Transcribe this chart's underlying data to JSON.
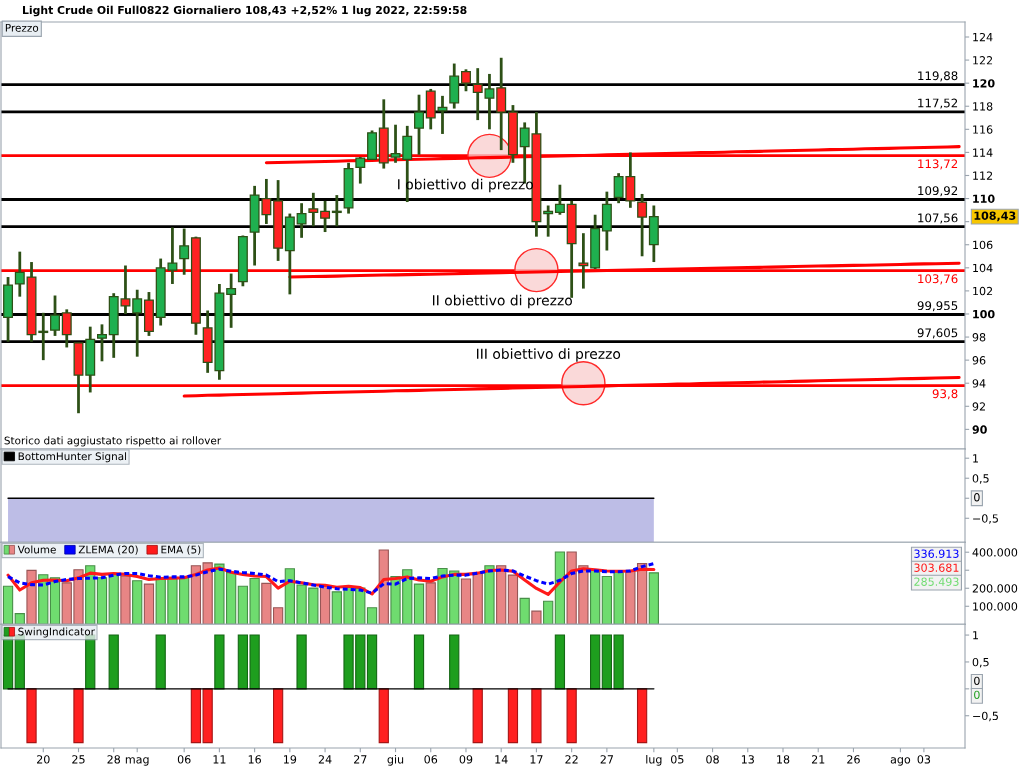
{
  "chart_data": [
    {
      "type": "candlestick",
      "title": "Light Crude Oil Full0822 Giornaliero 108,43 +2,52% 1 lug 2022, 22:59:58",
      "subtitle": "Prezzo",
      "categories": [
        null,
        null,
        null,
        null,
        null,
        null,
        null,
        null,
        null,
        null,
        null,
        null,
        null,
        null,
        null,
        null,
        null,
        null,
        null,
        null,
        null,
        null,
        null,
        null,
        null,
        null,
        null,
        null,
        null,
        null,
        null,
        null,
        null,
        null,
        null,
        null,
        null,
        null,
        null,
        null,
        null,
        null,
        null,
        null,
        null,
        null,
        null,
        null,
        null,
        null,
        null,
        null,
        null,
        null,
        null,
        null,
        null,
        null,
        null,
        null,
        null,
        null,
        null,
        null,
        null,
        null,
        null,
        null,
        null,
        null,
        null,
        null,
        null,
        null,
        null,
        null,
        null,
        null,
        null,
        null,
        null,
        null
      ],
      "ohlc": [
        [
          99.7,
          103.2,
          97.6,
          102.5
        ],
        [
          102.6,
          105.4,
          101.5,
          103.6
        ],
        [
          103.2,
          104.5,
          97.6,
          98.2
        ],
        [
          98.5,
          100.1,
          96.0,
          98.4
        ],
        [
          98.6,
          101.6,
          98.1,
          99.9
        ],
        [
          100.1,
          100.4,
          97.1,
          98.2
        ],
        [
          97.5,
          97.5,
          91.4,
          94.7
        ],
        [
          94.7,
          98.9,
          93.2,
          97.8
        ],
        [
          97.9,
          99.1,
          95.9,
          98.2
        ],
        [
          98.2,
          101.8,
          96.2,
          101.5
        ],
        [
          101.3,
          104.2,
          100.0,
          100.7
        ],
        [
          100.1,
          102.1,
          96.3,
          101.3
        ],
        [
          101.2,
          101.9,
          98.1,
          98.5
        ],
        [
          99.7,
          104.8,
          99.0,
          104.0
        ],
        [
          103.8,
          107.5,
          102.6,
          104.4
        ],
        [
          104.8,
          107.4,
          103.4,
          105.9
        ],
        [
          106.6,
          106.7,
          98.2,
          99.2
        ],
        [
          98.8,
          100.3,
          94.9,
          95.8
        ],
        [
          95.1,
          102.6,
          94.3,
          101.8
        ],
        [
          101.7,
          103.5,
          98.8,
          102.2
        ],
        [
          102.8,
          106.8,
          102.4,
          106.7
        ],
        [
          107.1,
          111.1,
          104.2,
          110.3
        ],
        [
          110.0,
          111.7,
          107.8,
          108.6
        ],
        [
          109.8,
          111.6,
          104.6,
          105.7
        ],
        [
          105.5,
          108.7,
          101.7,
          108.4
        ],
        [
          107.8,
          109.6,
          106.6,
          108.7
        ],
        [
          109.1,
          110.5,
          107.6,
          108.8
        ],
        [
          108.9,
          109.8,
          107.1,
          108.3
        ],
        [
          108.8,
          110.3,
          107.6,
          108.9
        ],
        [
          109.2,
          113.1,
          108.7,
          112.6
        ],
        [
          112.7,
          113.6,
          111.3,
          113.5
        ],
        [
          113.4,
          115.9,
          113.4,
          115.7
        ],
        [
          116.1,
          118.6,
          112.6,
          113.1
        ],
        [
          113.6,
          116.4,
          113.1,
          113.9
        ],
        [
          113.4,
          116.3,
          109.7,
          115.4
        ],
        [
          116.1,
          119.0,
          113.8,
          117.5
        ],
        [
          119.3,
          119.5,
          116.0,
          117.0
        ],
        [
          117.6,
          118.9,
          115.6,
          117.9
        ],
        [
          118.3,
          121.7,
          117.8,
          120.6
        ],
        [
          121.0,
          121.2,
          119.3,
          120.0
        ],
        [
          119.9,
          121.3,
          116.8,
          119.2
        ],
        [
          118.7,
          120.8,
          116.0,
          119.5
        ],
        [
          119.6,
          122.2,
          114.2,
          117.5
        ],
        [
          117.5,
          118.1,
          113.1,
          113.8
        ],
        [
          114.5,
          116.6,
          111.3,
          116.1
        ],
        [
          115.6,
          117.5,
          106.7,
          108.0
        ],
        [
          108.7,
          109.4,
          106.7,
          108.9
        ],
        [
          108.8,
          111.2,
          108.6,
          109.5
        ],
        [
          109.5,
          109.8,
          101.4,
          106.1
        ],
        [
          104.4,
          107.0,
          102.2,
          104.2
        ],
        [
          104.0,
          108.6,
          103.9,
          107.4
        ],
        [
          107.2,
          110.6,
          105.5,
          109.5
        ],
        [
          110.1,
          112.2,
          109.6,
          111.9
        ],
        [
          111.9,
          114.0,
          109.2,
          109.8
        ],
        [
          109.7,
          110.4,
          105.0,
          108.4
        ],
        [
          106.0,
          109.4,
          104.5,
          108.43
        ],
        null,
        null,
        null,
        null,
        null,
        null,
        null,
        null,
        null,
        null,
        null,
        null,
        null,
        null,
        null,
        null,
        null,
        null,
        null,
        null,
        null,
        null,
        null,
        null,
        null,
        null
      ],
      "series": [
        {
          "type": "line",
          "color": "#ff0000",
          "values": [
            null,
            null,
            null,
            null,
            null,
            null,
            null,
            null,
            null,
            null,
            null,
            null,
            null,
            null,
            null,
            null,
            null,
            null,
            null,
            null,
            null,
            null,
            113.1,
            113.12,
            113.15,
            113.17,
            113.19,
            113.22,
            113.24,
            113.27,
            113.29,
            113.31,
            113.34,
            113.36,
            113.38,
            113.41,
            113.43,
            113.46,
            113.48,
            113.5,
            113.53,
            113.55,
            113.57,
            113.6,
            113.62,
            113.64,
            113.67,
            113.69,
            113.72,
            113.74,
            113.76,
            113.79,
            113.81,
            113.83,
            113.86,
            113.88,
            113.91,
            113.93,
            113.95,
            113.98,
            114.0,
            114.02,
            114.05,
            114.07,
            114.09,
            114.12,
            114.14,
            114.17,
            114.19,
            114.21,
            114.24,
            114.26,
            114.28,
            114.31,
            114.33,
            114.35,
            114.38,
            114.4,
            114.43,
            114.45,
            114.47,
            114.5
          ]
        },
        {
          "type": "line",
          "color": "#ff0000",
          "values": [
            null,
            null,
            null,
            null,
            null,
            null,
            null,
            null,
            null,
            null,
            null,
            null,
            null,
            null,
            null,
            null,
            null,
            null,
            null,
            null,
            null,
            null,
            null,
            null,
            103.2,
            103.22,
            103.24,
            103.26,
            103.28,
            103.31,
            103.33,
            103.35,
            103.37,
            103.39,
            103.41,
            103.43,
            103.45,
            103.47,
            103.49,
            103.52,
            103.54,
            103.56,
            103.58,
            103.6,
            103.62,
            103.64,
            103.66,
            103.68,
            103.71,
            103.73,
            103.75,
            103.77,
            103.79,
            103.81,
            103.83,
            103.85,
            103.87,
            103.89,
            103.92,
            103.94,
            103.96,
            103.98,
            104.0,
            104.02,
            104.04,
            104.06,
            104.08,
            104.11,
            104.13,
            104.15,
            104.17,
            104.19,
            104.21,
            104.23,
            104.25,
            104.27,
            104.29,
            104.32,
            104.34,
            104.36,
            104.38,
            104.4
          ]
        },
        {
          "type": "line",
          "color": "#ff0000",
          "values": [
            null,
            null,
            null,
            null,
            null,
            null,
            null,
            null,
            null,
            null,
            null,
            null,
            null,
            null,
            null,
            92.9,
            92.92,
            92.95,
            92.97,
            93.0,
            93.02,
            93.05,
            93.07,
            93.09,
            93.12,
            93.14,
            93.17,
            93.19,
            93.22,
            93.24,
            93.26,
            93.29,
            93.31,
            93.34,
            93.36,
            93.38,
            93.41,
            93.43,
            93.46,
            93.48,
            93.51,
            93.53,
            93.55,
            93.58,
            93.6,
            93.63,
            93.65,
            93.67,
            93.7,
            93.72,
            93.75,
            93.77,
            93.8,
            93.82,
            93.84,
            93.87,
            93.89,
            93.92,
            93.94,
            93.97,
            93.99,
            94.01,
            94.04,
            94.06,
            94.09,
            94.11,
            94.13,
            94.16,
            94.18,
            94.21,
            94.23,
            94.25,
            94.28,
            94.3,
            94.33,
            94.35,
            94.38,
            94.4,
            94.42,
            94.45,
            94.47,
            94.5
          ]
        },
        {
          "type": "scatter",
          "color": "#f8cccc",
          "marker": "circle",
          "values": [
            null,
            null,
            null,
            null,
            null,
            null,
            null,
            null,
            null,
            null,
            null,
            null,
            null,
            null,
            null,
            null,
            null,
            null,
            null,
            null,
            null,
            null,
            null,
            null,
            null,
            null,
            null,
            null,
            null,
            null,
            null,
            null,
            null,
            null,
            null,
            null,
            null,
            null,
            null,
            null,
            null,
            113.7,
            null,
            null,
            null,
            103.8,
            null,
            null,
            null,
            94.0,
            null,
            null,
            null,
            null,
            null,
            null,
            null,
            null,
            null,
            null,
            null,
            null,
            null,
            null,
            null,
            null,
            null,
            null,
            null,
            null,
            null,
            null,
            null,
            null,
            null,
            null,
            null,
            null,
            null,
            null,
            null,
            null
          ]
        }
      ],
      "ylim": [
        88.3,
        125.3
      ],
      "yticks": [
        90,
        92,
        94,
        96,
        98,
        100,
        102,
        104,
        106,
        {
          "value": 108,
          "label": null
        },
        110,
        112,
        114,
        116,
        118,
        120,
        122,
        124
      ],
      "ref_lines": [
        {
          "axis": "y",
          "value": 119.88,
          "label": "119,88",
          "color": "#000000"
        },
        {
          "axis": "y",
          "value": 117.52,
          "label": "117,52",
          "color": "#000000"
        },
        {
          "axis": "y",
          "value": 113.72,
          "label": "113,72",
          "color": "#ff0000"
        },
        {
          "axis": "y",
          "value": 109.92,
          "label": "109,92",
          "color": "#000000"
        },
        {
          "axis": "y",
          "value": 107.56,
          "label": "107,56",
          "color": "#000000"
        },
        {
          "axis": "y",
          "value": 103.76,
          "label": "103,76",
          "color": "#ff0000"
        },
        {
          "axis": "y",
          "value": 99.955,
          "label": "99,955",
          "color": "#000000"
        },
        {
          "axis": "y",
          "value": 97.605,
          "label": "97,605",
          "color": "#000000"
        },
        {
          "axis": "y",
          "value": 93.8,
          "label": "93,8",
          "color": "#ff0000"
        }
      ],
      "annotations": [
        "I obiettivo di prezzo",
        "II obiettivo di prezzo",
        "III obiettivo di prezzo",
        "Storico dati aggiustato rispetto ai rollover",
        "108,43"
      ]
    },
    {
      "type": "line",
      "categories": [
        null,
        null,
        null,
        null,
        null,
        null,
        null,
        null,
        null,
        null,
        null,
        null,
        null,
        null,
        null,
        null,
        null,
        null,
        null,
        null,
        null,
        null,
        null,
        null,
        null,
        null,
        null,
        null,
        null,
        null,
        null,
        null,
        null,
        null,
        null,
        null,
        null,
        null,
        null,
        null,
        null,
        null,
        null,
        null,
        null,
        null,
        null,
        null,
        null,
        null,
        null,
        null,
        null,
        null,
        null,
        null,
        null,
        null,
        null,
        null,
        null,
        null,
        null,
        null,
        null,
        null,
        null,
        null,
        null,
        null,
        null,
        null,
        null,
        null,
        null,
        null,
        null,
        null,
        null,
        null,
        null,
        null
      ],
      "series": [
        {
          "name": "BottomHunter Signal",
          "color": "#000000",
          "values": [
            0,
            0,
            0,
            0,
            0,
            0,
            0,
            0,
            0,
            0,
            0,
            0,
            0,
            0,
            0,
            0,
            0,
            0,
            0,
            0,
            0,
            0,
            0,
            0,
            0,
            0,
            0,
            0,
            0,
            0,
            0,
            0,
            0,
            0,
            0,
            0,
            0,
            0,
            0,
            0,
            0,
            0,
            0,
            0,
            0,
            0,
            0,
            0,
            0,
            0,
            0,
            0,
            0,
            0,
            0,
            0,
            null,
            null,
            null,
            null,
            null,
            null,
            null,
            null,
            null,
            null,
            null,
            null,
            null,
            null,
            null,
            null,
            null,
            null,
            null,
            null,
            null,
            null,
            null,
            null,
            null,
            null
          ],
          "lower": [
            -1.1,
            -1.1,
            -1.1,
            -1.1,
            -1.1,
            -1.1,
            -1.1,
            -1.1,
            -1.1,
            -1.1,
            -1.1,
            -1.1,
            -1.1,
            -1.1,
            -1.1,
            -1.1,
            -1.1,
            -1.1,
            -1.1,
            -1.1,
            -1.1,
            -1.1,
            -1.1,
            -1.1,
            -1.1,
            -1.1,
            -1.1,
            -1.1,
            -1.1,
            -1.1,
            -1.1,
            -1.1,
            -1.1,
            -1.1,
            -1.1,
            -1.1,
            -1.1,
            -1.1,
            -1.1,
            -1.1,
            -1.1,
            -1.1,
            -1.1,
            -1.1,
            -1.1,
            -1.1,
            -1.1,
            -1.1,
            -1.1,
            -1.1,
            -1.1,
            -1.1,
            -1.1,
            -1.1,
            -1.1,
            -1.1,
            null,
            null,
            null,
            null,
            null,
            null,
            null,
            null,
            null,
            null,
            null,
            null,
            null,
            null,
            null,
            null,
            null,
            null,
            null,
            null,
            null,
            null,
            null,
            null,
            null,
            null
          ],
          "upper": [
            0,
            0,
            0,
            0,
            0,
            0,
            0,
            0,
            0,
            0,
            0,
            0,
            0,
            0,
            0,
            0,
            0,
            0,
            0,
            0,
            0,
            0,
            0,
            0,
            0,
            0,
            0,
            0,
            0,
            0,
            0,
            0,
            0,
            0,
            0,
            0,
            0,
            0,
            0,
            0,
            0,
            0,
            0,
            0,
            0,
            0,
            0,
            0,
            0,
            0,
            0,
            0,
            0,
            0,
            0,
            0,
            null,
            null,
            null,
            null,
            null,
            null,
            null,
            null,
            null,
            null,
            null,
            null,
            null,
            null,
            null,
            null,
            null,
            null,
            null,
            null,
            null,
            null,
            null,
            null,
            null,
            null
          ]
        }
      ],
      "ylim": [
        -1.1,
        1.23
      ],
      "yticks": [
        1,
        {
          "value": 0.5,
          "label": "0,5"
        },
        {
          "value": 0,
          "label": null
        },
        {
          "value": -0.5,
          "label": "−0,5"
        }
      ],
      "annotations": [
        "0"
      ],
      "legend": "top left"
    },
    {
      "type": "bar",
      "categories": [
        null,
        null,
        null,
        null,
        null,
        null,
        null,
        null,
        null,
        null,
        null,
        null,
        null,
        null,
        null,
        null,
        null,
        null,
        null,
        null,
        null,
        null,
        null,
        null,
        null,
        null,
        null,
        null,
        null,
        null,
        null,
        null,
        null,
        null,
        null,
        null,
        null,
        null,
        null,
        null,
        null,
        null,
        null,
        null,
        null,
        null,
        null,
        null,
        null,
        null,
        null,
        null,
        null,
        null,
        null,
        null,
        null,
        null,
        null,
        null,
        null,
        null,
        null,
        null,
        null,
        null,
        null,
        null,
        null,
        null,
        null,
        null,
        null,
        null,
        null,
        null,
        null,
        null,
        null,
        null,
        null,
        null
      ],
      "series": [
        {
          "name": "Volume",
          "values": [
            211000,
            59000,
            299000,
            275000,
            258000,
            230000,
            303000,
            325000,
            258000,
            277000,
            268000,
            242000,
            223000,
            258000,
            261000,
            258000,
            325000,
            341000,
            334000,
            287000,
            211000,
            254000,
            227000,
            92000,
            308000,
            218000,
            201000,
            211000,
            180000,
            206000,
            201000,
            92000,
            412000,
            265000,
            303000,
            223000,
            230000,
            310000,
            296000,
            251000,
            282000,
            325000,
            325000,
            273000,
            144000,
            73000,
            128000,
            401000,
            401000,
            325000,
            301000,
            265000,
            289000,
            296000,
            337000,
            285493,
            null,
            null,
            null,
            null,
            null,
            null,
            null,
            null,
            null,
            null,
            null,
            null,
            null,
            null,
            null,
            null,
            null,
            null,
            null,
            null,
            null,
            null,
            null,
            null,
            null,
            null
          ],
          "colors": [
            "#6fdc6f",
            "#6fdc6f",
            "#e88585",
            "#6fdc6f",
            "#6fdc6f",
            "#e88585",
            "#e88585",
            "#6fdc6f",
            "#6fdc6f",
            "#6fdc6f",
            "#e88585",
            "#6fdc6f",
            "#e88585",
            "#6fdc6f",
            "#6fdc6f",
            "#6fdc6f",
            "#e88585",
            "#e88585",
            "#6fdc6f",
            "#6fdc6f",
            "#6fdc6f",
            "#6fdc6f",
            "#e88585",
            "#e88585",
            "#6fdc6f",
            "#6fdc6f",
            "#6fdc6f",
            "#e88585",
            "#6fdc6f",
            "#6fdc6f",
            "#6fdc6f",
            "#6fdc6f",
            "#e88585",
            "#6fdc6f",
            "#6fdc6f",
            "#6fdc6f",
            "#e88585",
            "#6fdc6f",
            "#6fdc6f",
            "#e88585",
            "#e88585",
            "#6fdc6f",
            "#e88585",
            "#e88585",
            "#6fdc6f",
            "#e88585",
            "#6fdc6f",
            "#6fdc6f",
            "#e88585",
            "#e88585",
            "#6fdc6f",
            "#6fdc6f",
            "#6fdc6f",
            "#e88585",
            "#e88585",
            "#6fdc6f",
            null,
            null,
            null,
            null,
            null,
            null,
            null,
            null,
            null,
            null,
            null,
            null,
            null,
            null,
            null,
            null,
            null,
            null,
            null,
            null,
            null,
            null,
            null,
            null,
            null,
            null
          ]
        },
        {
          "name": "ZLEMA (20)",
          "type": "line",
          "color": "#0000ff",
          "line_style": "dashed",
          "values": [
            265000,
            230000,
            220000,
            218000,
            237000,
            249000,
            254000,
            256000,
            258000,
            273000,
            282000,
            282000,
            270000,
            261000,
            263000,
            263000,
            273000,
            292000,
            306000,
            294000,
            287000,
            282000,
            273000,
            237000,
            242000,
            230000,
            218000,
            206000,
            197000,
            194000,
            190000,
            173000,
            225000,
            223000,
            254000,
            258000,
            254000,
            268000,
            273000,
            273000,
            284000,
            296000,
            301000,
            296000,
            268000,
            242000,
            223000,
            244000,
            282000,
            296000,
            296000,
            292000,
            292000,
            296000,
            320000,
            336913,
            null,
            null,
            null,
            null,
            null,
            null,
            null,
            null,
            null,
            null,
            null,
            null,
            null,
            null,
            null,
            null,
            null,
            null,
            null,
            null,
            null,
            null,
            null,
            null,
            null,
            null
          ]
        },
        {
          "name": "EMA (5)",
          "type": "line",
          "color": "#ff1a1a",
          "values": [
            273000,
            190000,
            230000,
            244000,
            246000,
            242000,
            258000,
            284000,
            277000,
            282000,
            277000,
            265000,
            249000,
            254000,
            256000,
            258000,
            277000,
            301000,
            313000,
            289000,
            277000,
            268000,
            265000,
            201000,
            239000,
            230000,
            220000,
            216000,
            206000,
            211000,
            204000,
            168000,
            249000,
            254000,
            263000,
            246000,
            239000,
            263000,
            277000,
            277000,
            284000,
            299000,
            301000,
            294000,
            246000,
            199000,
            166000,
            235000,
            296000,
            308000,
            303000,
            296000,
            294000,
            296000,
            306000,
            303681,
            null,
            null,
            null,
            null,
            null,
            null,
            null,
            null,
            null,
            null,
            null,
            null,
            null,
            null,
            null,
            null,
            null,
            null,
            null,
            null,
            null,
            null,
            null,
            null,
            null,
            null
          ]
        }
      ],
      "ylim": [
        0,
        455000
      ],
      "yticks": [
        {
          "value": 100000,
          "label": "100.000"
        },
        {
          "value": 200000,
          "label": "200.000"
        },
        {
          "value": 300000,
          "label": null
        },
        {
          "value": 400000,
          "label": "400.000"
        }
      ],
      "annotations": [
        "336.913",
        "303.681",
        "285.493"
      ],
      "legend": "top left"
    },
    {
      "type": "bar",
      "categories": [
        null,
        null,
        null,
        "20",
        null,
        null,
        "25",
        null,
        null,
        "28",
        null,
        "mag",
        null,
        null,
        null,
        "06",
        null,
        null,
        "11",
        null,
        null,
        "16",
        null,
        null,
        "19",
        null,
        null,
        "24",
        null,
        null,
        "27",
        null,
        null,
        "giu",
        null,
        null,
        "06",
        null,
        null,
        "09",
        null,
        null,
        "14",
        null,
        null,
        "17",
        null,
        null,
        "22",
        null,
        null,
        "27",
        null,
        null,
        null,
        "lug",
        null,
        "05",
        null,
        null,
        "08",
        null,
        null,
        "13",
        null,
        null,
        "18",
        null,
        null,
        "21",
        null,
        null,
        "26",
        null,
        null,
        null,
        "ago",
        null,
        "03",
        null,
        null,
        null
      ],
      "series": [
        {
          "type": "line",
          "color": "#000000",
          "values": [
            0,
            0,
            0,
            0,
            0,
            0,
            0,
            0,
            0,
            0,
            0,
            0,
            0,
            0,
            0,
            0,
            0,
            0,
            0,
            0,
            0,
            0,
            0,
            0,
            0,
            0,
            0,
            0,
            0,
            0,
            0,
            0,
            0,
            0,
            0,
            0,
            0,
            0,
            0,
            0,
            0,
            0,
            0,
            0,
            0,
            0,
            0,
            0,
            0,
            0,
            0,
            0,
            0,
            0,
            0,
            0,
            null,
            null,
            null,
            null,
            null,
            null,
            null,
            null,
            null,
            null,
            null,
            null,
            null,
            null,
            null,
            null,
            null,
            null,
            null,
            null,
            null,
            null,
            null,
            null,
            null,
            null
          ]
        },
        {
          "name": "SwingIndicator",
          "values": [
            1,
            1,
            -1,
            null,
            null,
            null,
            -1,
            1,
            null,
            1,
            null,
            null,
            null,
            1,
            null,
            null,
            -1,
            -1,
            1,
            null,
            1,
            1,
            null,
            -1,
            null,
            1,
            null,
            null,
            null,
            1,
            1,
            1,
            -1,
            null,
            null,
            1,
            null,
            null,
            1,
            null,
            -1,
            null,
            null,
            -1,
            null,
            -1,
            null,
            1,
            -1,
            null,
            1,
            1,
            1,
            null,
            -1,
            0,
            null,
            null,
            null,
            null,
            null,
            null,
            null,
            null,
            null,
            null,
            null,
            null,
            null,
            null,
            null,
            null,
            null,
            null,
            null,
            null,
            null,
            null,
            null,
            null,
            null,
            null
          ],
          "colors": [
            "#1e9e1e",
            "#1e9e1e",
            "#ff2020",
            null,
            null,
            null,
            "#ff2020",
            "#1e9e1e",
            null,
            "#1e9e1e",
            null,
            null,
            null,
            "#1e9e1e",
            null,
            null,
            "#ff2020",
            "#ff2020",
            "#1e9e1e",
            null,
            "#1e9e1e",
            "#1e9e1e",
            null,
            "#ff2020",
            null,
            "#1e9e1e",
            null,
            null,
            null,
            "#1e9e1e",
            "#1e9e1e",
            "#1e9e1e",
            "#ff2020",
            null,
            null,
            "#1e9e1e",
            null,
            null,
            "#1e9e1e",
            null,
            "#ff2020",
            null,
            null,
            "#ff2020",
            null,
            "#ff2020",
            null,
            "#1e9e1e",
            "#ff2020",
            null,
            "#1e9e1e",
            "#1e9e1e",
            "#1e9e1e",
            null,
            "#ff2020",
            "#1e9e1e",
            null,
            null,
            null,
            null,
            null,
            null,
            null,
            null,
            null,
            null,
            null,
            null,
            null,
            null,
            null,
            null,
            null,
            null,
            null,
            null,
            null,
            null,
            null,
            null,
            null,
            null
          ]
        }
      ],
      "ylim": [
        -1.1,
        1.2
      ],
      "yticks": [
        1,
        {
          "value": 0.5,
          "label": "0,5"
        },
        {
          "value": 0,
          "label": null
        },
        {
          "value": -0.5,
          "label": "−0,5"
        }
      ],
      "annotations": [
        "0",
        "0"
      ],
      "legend": "top left"
    }
  ]
}
